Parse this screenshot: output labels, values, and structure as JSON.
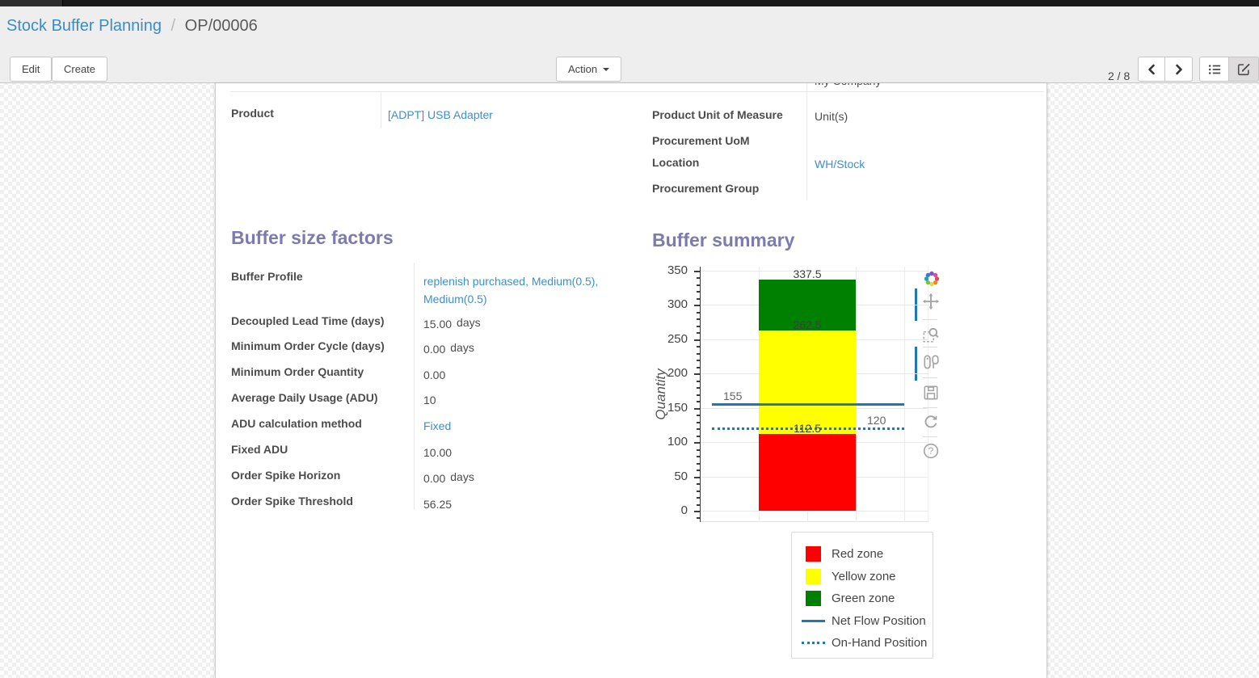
{
  "breadcrumb": {
    "parent": "Stock Buffer Planning",
    "separator": "/",
    "current": "OP/00006"
  },
  "toolbar": {
    "edit": "Edit",
    "create": "Create",
    "action": "Action",
    "pager": "2 / 8"
  },
  "form": {
    "clipped_company": "My Company",
    "product": {
      "label": "Product",
      "value": "[ADPT] USB Adapter"
    },
    "right_group": {
      "fields": [
        {
          "label": "Product Unit of Measure",
          "value": "Unit(s)"
        },
        {
          "label": "Procurement UoM",
          "value": ""
        },
        {
          "label": "Location",
          "value": "WH/Stock"
        },
        {
          "label": "Procurement Group",
          "value": ""
        }
      ]
    },
    "buffer_factors": {
      "title": "Buffer size factors",
      "fields": [
        {
          "label": "Buffer Profile",
          "value": "replenish purchased, Medium(0.5), Medium(0.5)"
        },
        {
          "label": "Decoupled Lead Time (days)",
          "value": "15.00",
          "unit": "days"
        },
        {
          "label": "Minimum Order Cycle (days)",
          "value": "0.00",
          "unit": "days"
        },
        {
          "label": "Minimum Order Quantity",
          "value": "0.00"
        },
        {
          "label": "Average Daily Usage (ADU)",
          "value": "10"
        },
        {
          "label": "ADU calculation method",
          "value": "Fixed"
        },
        {
          "label": "Fixed ADU",
          "value": "10.00"
        },
        {
          "label": "Order Spike Horizon",
          "value": "0.00",
          "unit": "days"
        },
        {
          "label": "Order Spike Threshold",
          "value": "56.25"
        }
      ]
    },
    "buffer_summary_title": "Buffer summary"
  },
  "chart_data": {
    "type": "bar",
    "title": "Buffer summary",
    "ylabel": "Quantity",
    "xlabel": "",
    "ylim": [
      0,
      350
    ],
    "yticks": [
      0,
      50,
      100,
      150,
      200,
      250,
      300,
      350
    ],
    "minor_tick_step": 10,
    "grid": true,
    "zones": [
      {
        "name": "Red zone",
        "from": 0,
        "to": 112.5,
        "color": "#ff0000",
        "label": "112.5"
      },
      {
        "name": "Yellow zone",
        "from": 112.5,
        "to": 262.5,
        "color": "#ffff00",
        "label": "262.5"
      },
      {
        "name": "Green zone",
        "from": 262.5,
        "to": 337.5,
        "color": "#008000",
        "label": "337.5"
      }
    ],
    "lines": [
      {
        "name": "Net Flow Position",
        "value": 155,
        "style": "solid",
        "color": "#1f77b4",
        "label": "155"
      },
      {
        "name": "On-Hand Position",
        "value": 120,
        "style": "dotted",
        "color": "#1f77b4",
        "label": "120"
      }
    ],
    "legend": [
      {
        "label": "Red zone",
        "swatch": "square",
        "color": "#ff0000"
      },
      {
        "label": "Yellow zone",
        "swatch": "square",
        "color": "#ffff00"
      },
      {
        "label": "Green zone",
        "swatch": "square",
        "color": "#008000"
      },
      {
        "label": "Net Flow Position",
        "swatch": "line",
        "color": "#1f77b4"
      },
      {
        "label": "On-Hand Position",
        "swatch": "dotted-line",
        "color": "#1f77b4"
      }
    ],
    "legend_position": "below-right"
  },
  "colors": {
    "heading": "#7c7bad",
    "link": "#3f8fc9",
    "breadcrumb_link": "#3a8cc8"
  },
  "icons": {
    "pager": [
      "chevron-left-icon",
      "chevron-right-icon"
    ],
    "switcher": [
      "list-view-icon",
      "form-view-icon"
    ],
    "action": "caret-down-icon",
    "modebar": [
      "plotly-logo-icon",
      "pan-icon",
      "box-zoom-icon",
      "hover-compare-icon",
      "save-icon",
      "reset-axes-icon",
      "help-icon"
    ]
  }
}
